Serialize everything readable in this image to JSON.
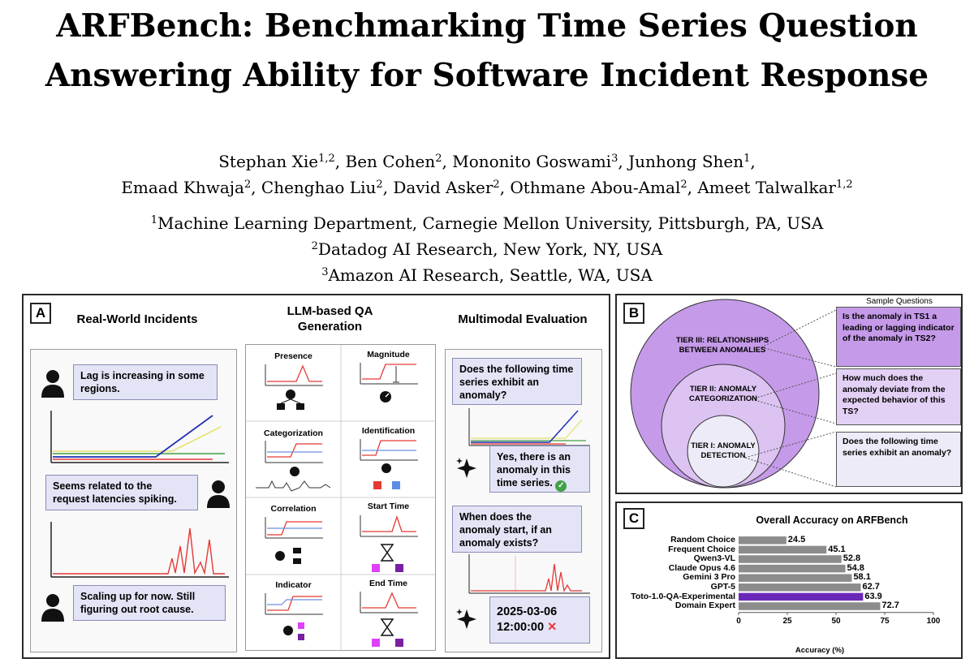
{
  "title": {
    "line1": "ARFBench: Benchmarking Time Series Question",
    "line2": "Answering Ability for Software Incident Response"
  },
  "authors": {
    "line1": [
      {
        "name": "Stephan Xie",
        "sup": "1,2",
        "sep": ", "
      },
      {
        "name": "Ben Cohen",
        "sup": "2",
        "sep": ", "
      },
      {
        "name": "Mononito Goswami",
        "sup": "3",
        "sep": ", "
      },
      {
        "name": "Junhong Shen",
        "sup": "1",
        "sep": ","
      }
    ],
    "line2": [
      {
        "name": "Emaad Khwaja",
        "sup": "2",
        "sep": ", "
      },
      {
        "name": "Chenghao Liu",
        "sup": "2",
        "sep": ", "
      },
      {
        "name": "David Asker",
        "sup": "2",
        "sep": ", "
      },
      {
        "name": "Othmane Abou-Amal",
        "sup": "2",
        "sep": ", "
      },
      {
        "name": "Ameet Talwalkar",
        "sup": "1,2",
        "sep": ""
      }
    ]
  },
  "affiliations": [
    {
      "sup": "1",
      "text": "Machine Learning Department, Carnegie Mellon University, Pittsburgh, PA, USA"
    },
    {
      "sup": "2",
      "text": "Datadog AI Research, New York, NY, USA"
    },
    {
      "sup": "3",
      "text": "Amazon AI Research, Seattle, WA, USA"
    }
  ],
  "panel_a": {
    "letter": "A",
    "col1_header": "Real-World Incidents",
    "col2_header": "LLM-based QA Generation",
    "col3_header": "Multimodal Evaluation",
    "incidents": [
      "Lag is increasing in some regions.",
      "Seems related to the request latencies spiking.",
      "Scaling up for now. Still figuring out root cause."
    ],
    "qa_cells": [
      "Presence",
      "Magnitude",
      "Categorization",
      "Identification",
      "Correlation",
      "Start Time",
      "Indicator",
      "End Time"
    ],
    "eval": {
      "q1": "Does the following time series exhibit an anomaly?",
      "a1": "Yes, there is an anomaly in this time series.",
      "a1_mark": "✓",
      "q2": "When does the anomaly start, if an anomaly exists?",
      "a2_line1": "2025-03-06",
      "a2_line2": "12:00:00",
      "a2_mark": "✕"
    }
  },
  "panel_b": {
    "letter": "B",
    "header": "Sample Questions",
    "tiers": [
      "TIER III: RELATIONSHIPS BETWEEN ANOMALIES",
      "TIER II: ANOMALY CATEGORIZATION",
      "TIER I: ANOMALY DETECTION"
    ],
    "questions": [
      "Is the anomaly in TS1 a leading or lagging indicator of the anomaly in TS2?",
      "How much does the anomaly deviate from the expected behavior of this TS?",
      "Does the following time series exhibit an anomaly?"
    ],
    "colors": {
      "tier3": "#c59ae9",
      "tier2": "#dcc3f2",
      "tier1": "#ecebf7"
    }
  },
  "panel_c": {
    "letter": "C"
  },
  "chart_data": {
    "type": "bar",
    "orientation": "horizontal",
    "title": "Overall Accuracy on ARFBench",
    "xlabel": "Accuracy (%)",
    "ylabel": "",
    "xlim": [
      0,
      100
    ],
    "xticks": [
      0,
      25,
      50,
      75,
      100
    ],
    "categories": [
      "Random Choice",
      "Frequent Choice",
      "Qwen3-VL",
      "Claude Opus 4.6",
      "Gemini 3 Pro",
      "GPT-5",
      "Toto-1.0-QA-Experimental",
      "Domain Expert"
    ],
    "values": [
      24.5,
      45.1,
      52.8,
      54.8,
      58.1,
      62.7,
      63.9,
      72.7
    ],
    "colors": [
      "#8c8c8c",
      "#8c8c8c",
      "#8c8c8c",
      "#8c8c8c",
      "#8c8c8c",
      "#8c8c8c",
      "#6a28b8",
      "#8c8c8c"
    ],
    "grid": false
  }
}
